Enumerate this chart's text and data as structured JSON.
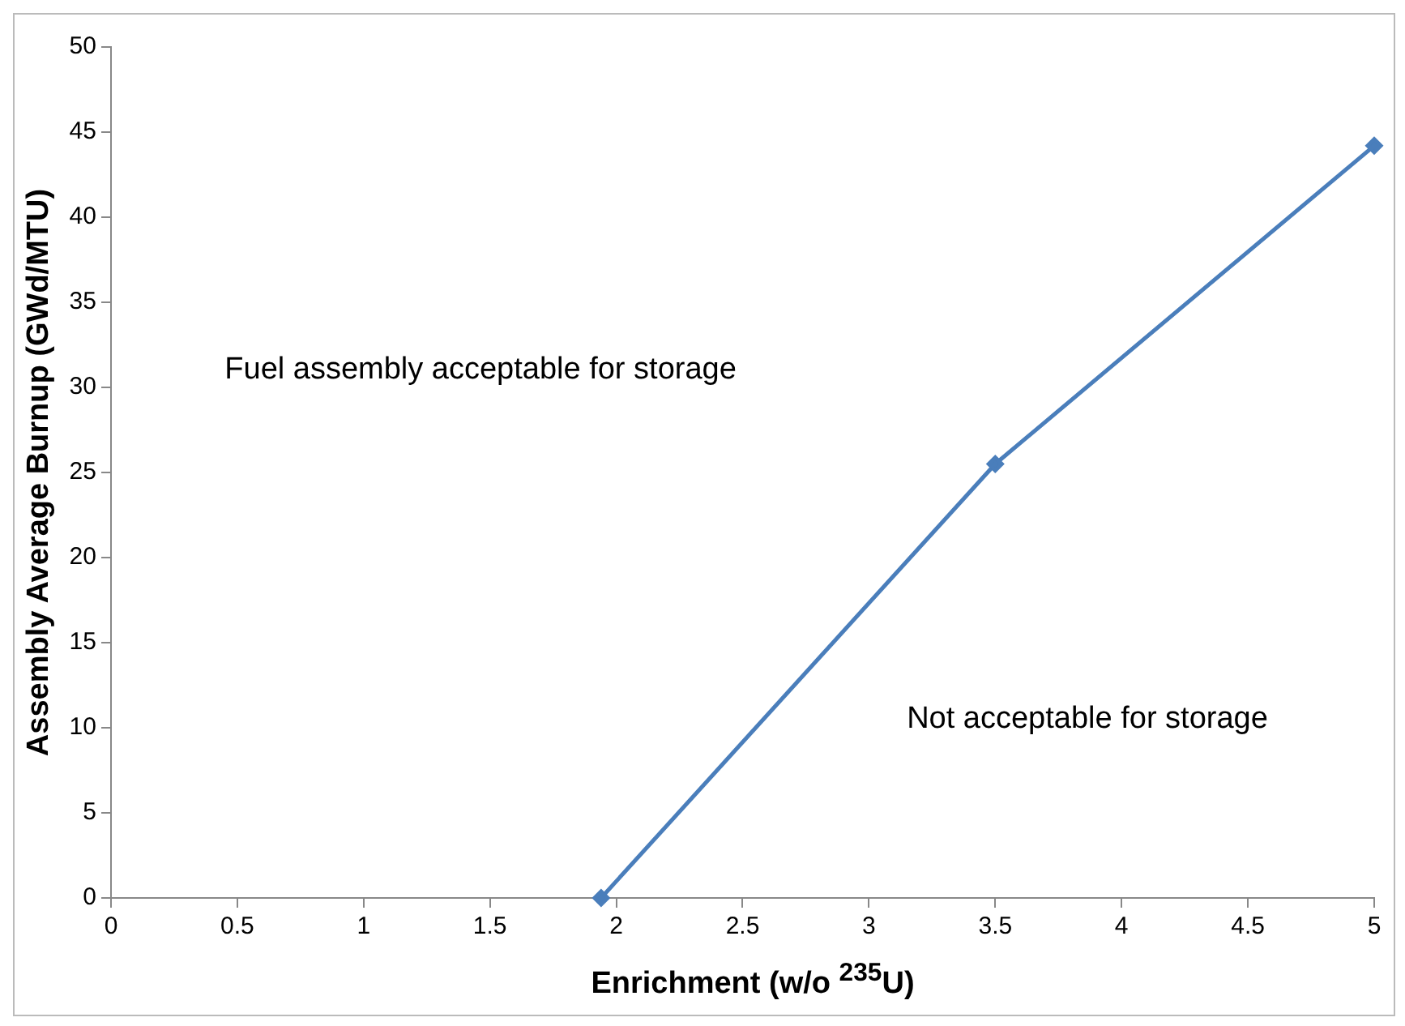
{
  "chart_data": {
    "type": "line",
    "xlabel": "Enrichment (w/o $^{235}$U)",
    "ylabel": "Assembly Average Burnup (GWd/MTU)",
    "x": [
      1.94,
      3.5,
      5
    ],
    "series": [
      {
        "color": "#4a7ebb",
        "values": [
          0,
          25.5,
          44.2
        ]
      }
    ],
    "xlim": [
      0,
      5
    ],
    "xticks": [
      0,
      0.5,
      1,
      1.5,
      2,
      2.5,
      3,
      3.5,
      4,
      4.5,
      5
    ],
    "ylim": [
      0,
      50
    ],
    "yticks": [
      0,
      5,
      10,
      15,
      20,
      25,
      30,
      35,
      40,
      45,
      50
    ],
    "grid": false,
    "legend": false,
    "marker": "diamond",
    "line_style": "solid",
    "annotations": [
      "Fuel assembly acceptable for storage",
      "Not acceptable for storage"
    ]
  }
}
